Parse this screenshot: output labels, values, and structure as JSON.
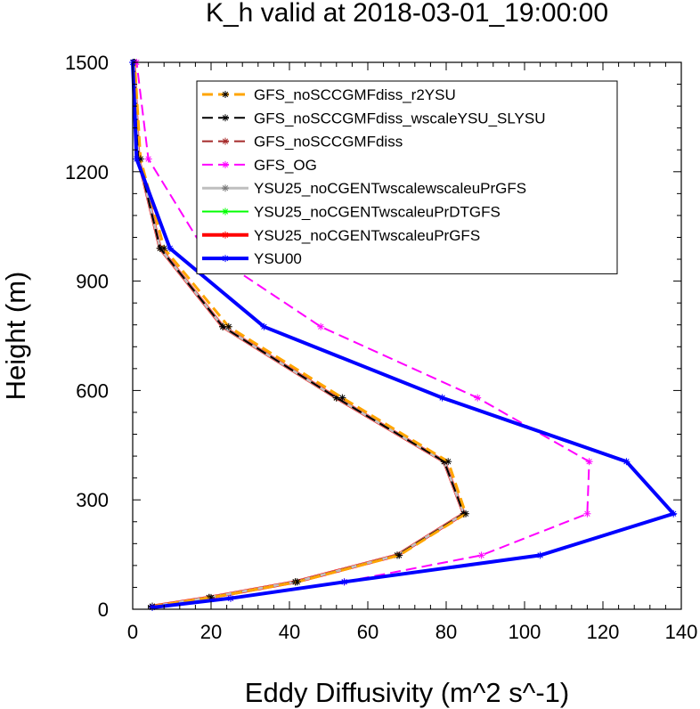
{
  "chart_data": {
    "type": "line",
    "title": "K_h valid at 2018-03-01_19:00:00",
    "xlabel": "Eddy Diffusivity (m^2 s^-1)",
    "ylabel": "Height (m)",
    "xlim": [
      0,
      140
    ],
    "ylim": [
      0,
      1500
    ],
    "xticks": [
      0,
      20,
      40,
      60,
      80,
      100,
      120,
      140
    ],
    "yticks": [
      0,
      300,
      600,
      900,
      1200,
      1500
    ],
    "xtick_labels": [
      "0",
      "20",
      "40",
      "60",
      "80",
      "100",
      "120",
      "140"
    ],
    "ytick_labels": [
      "0",
      "300",
      "600",
      "900",
      "1200",
      "1500"
    ],
    "grid": false,
    "legend_position": "top-right",
    "series": [
      {
        "name": "YSU25_noCGENTwscaleuPrGFS",
        "color": "#ff0000",
        "dash": "solid",
        "width": 4,
        "x": [
          5,
          19.5,
          41.5,
          67.5,
          84.5,
          79.5,
          52,
          23,
          7,
          1.5,
          0.3
        ],
        "y": [
          8,
          32,
          75,
          148,
          262,
          405,
          580,
          775,
          990,
          1235,
          1500
        ]
      },
      {
        "name": "YSU25_noCGENTwscaleuPrDTGFS",
        "color": "#00ff00",
        "dash": "solid",
        "width": 2,
        "x": [
          5,
          19.5,
          41.5,
          67.5,
          84.5,
          79.5,
          52,
          23,
          7,
          1.5,
          0.3
        ],
        "y": [
          8,
          32,
          75,
          148,
          262,
          405,
          580,
          775,
          990,
          1235,
          1500
        ]
      },
      {
        "name": "YSU25_noCGENTwscalewscaleuPrGFS",
        "color": "#bfbfbf",
        "dash": "solid",
        "width": 3,
        "x": [
          5,
          19.5,
          41.5,
          67.5,
          84.5,
          79.5,
          52,
          23,
          7,
          1.5,
          0.3
        ],
        "y": [
          8,
          32,
          75,
          148,
          262,
          405,
          580,
          775,
          990,
          1235,
          1500
        ]
      },
      {
        "name": "GFS_noSCCGMFdiss",
        "color": "#a52a2a",
        "dash": "dash",
        "width": 2,
        "x": [
          5,
          19.5,
          41.5,
          67.5,
          84.5,
          79.5,
          52,
          23,
          7,
          1.5,
          0.3
        ],
        "y": [
          8,
          32,
          75,
          148,
          262,
          405,
          580,
          775,
          990,
          1235,
          1500
        ]
      },
      {
        "name": "GFS_noSCCGMFdiss_wscaleYSU_SLYSU",
        "color": "#000000",
        "dash": "dash",
        "width": 2,
        "x": [
          5,
          19.5,
          41.5,
          67.5,
          84.5,
          79.5,
          52,
          23,
          7,
          1.5,
          0.3
        ],
        "y": [
          8,
          32,
          75,
          148,
          262,
          405,
          580,
          775,
          990,
          1235,
          1500
        ]
      },
      {
        "name": "GFS_noSCCGMFdiss_r2YSU",
        "color": "#ffa500",
        "dash": "dash",
        "width": 3,
        "x": [
          5,
          20,
          42,
          68,
          85,
          80.5,
          53.5,
          24.5,
          8,
          2,
          0.5
        ],
        "y": [
          8,
          32,
          75,
          148,
          262,
          405,
          580,
          775,
          990,
          1235,
          1500
        ]
      },
      {
        "name": "GFS_OG",
        "color": "#ff00ff",
        "dash": "dash",
        "width": 2,
        "x": [
          5,
          25,
          54,
          89,
          116,
          116.5,
          88,
          48,
          18,
          4,
          1
        ],
        "y": [
          5,
          30,
          75,
          148,
          262,
          405,
          580,
          775,
          990,
          1235,
          1500
        ]
      },
      {
        "name": "YSU00",
        "color": "#0000ff",
        "dash": "solid",
        "width": 4,
        "x": [
          5,
          25,
          54,
          104,
          138,
          126,
          79,
          33.5,
          9.5,
          1,
          0
        ],
        "y": [
          5,
          30,
          75,
          148,
          262,
          405,
          580,
          775,
          990,
          1235,
          1500
        ]
      }
    ],
    "legend_order": [
      "GFS_noSCCGMFdiss_r2YSU",
      "GFS_noSCCGMFdiss_wscaleYSU_SLYSU",
      "GFS_noSCCGMFdiss",
      "GFS_OG",
      "YSU25_noCGENTwscalewscaleuPrGFS",
      "YSU25_noCGENTwscaleuPrDTGFS",
      "YSU25_noCGENTwscaleuPrGFS",
      "YSU00"
    ]
  }
}
